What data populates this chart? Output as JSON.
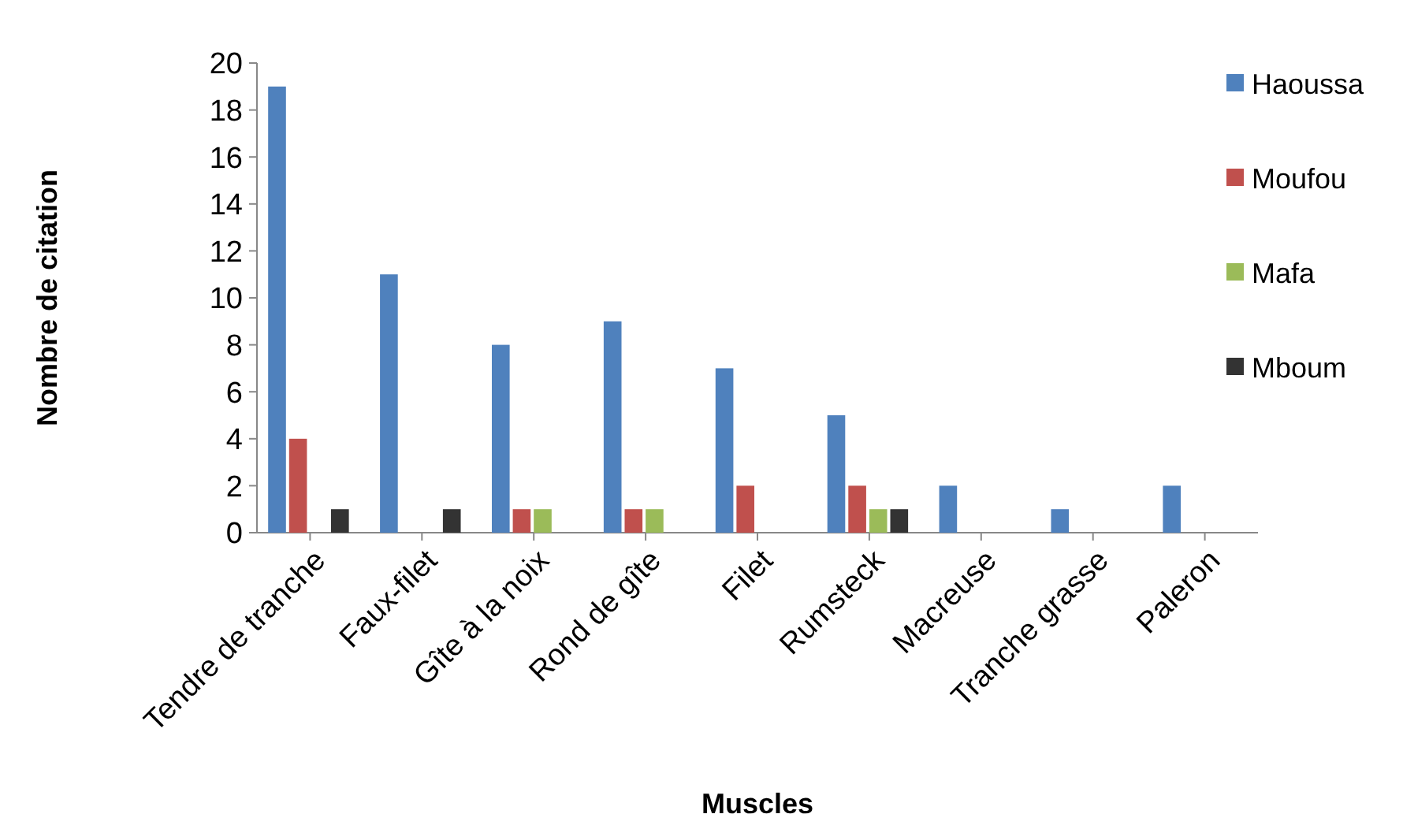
{
  "chart_data": {
    "type": "bar",
    "xlabel": "Muscles",
    "ylabel": "Nombre de citation",
    "categories": [
      "Tendre de tranche",
      "Faux-filet",
      "Gîte à la noix",
      "Rond de gîte",
      "Filet",
      "Rumsteck",
      "Macreuse",
      "Tranche grasse",
      "Paleron"
    ],
    "series": [
      {
        "name": "Haoussa",
        "color": "#4f81bd",
        "values": [
          19,
          11,
          8,
          9,
          7,
          5,
          2,
          1,
          2
        ]
      },
      {
        "name": "Moufou",
        "color": "#c0504d",
        "values": [
          4,
          0,
          1,
          1,
          2,
          2,
          0,
          0,
          0
        ]
      },
      {
        "name": "Mafa",
        "color": "#9bbb59",
        "values": [
          0,
          0,
          1,
          1,
          0,
          1,
          0,
          0,
          0
        ]
      },
      {
        "name": "Mboum",
        "color": "#333333",
        "values": [
          1,
          1,
          0,
          0,
          0,
          1,
          0,
          0,
          0
        ]
      }
    ],
    "ylim": [
      0,
      20
    ],
    "yticks": [
      0,
      2,
      4,
      6,
      8,
      10,
      12,
      14,
      16,
      18,
      20
    ],
    "grid": false,
    "legend": "right"
  }
}
